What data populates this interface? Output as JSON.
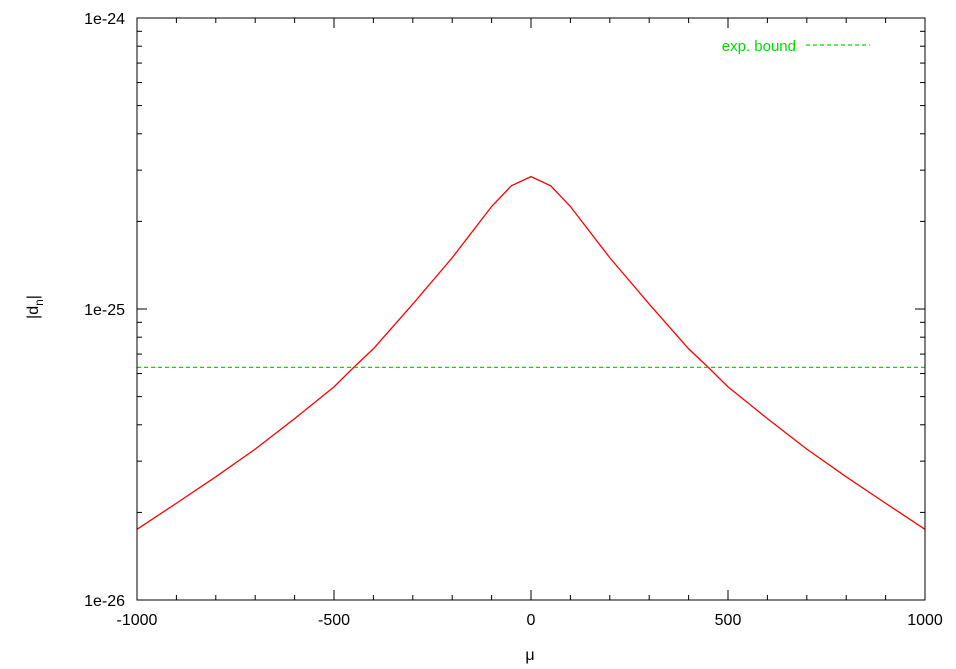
{
  "chart_data": {
    "type": "line",
    "title": "",
    "xlabel": "μ",
    "ylabel_main": "|d",
    "ylabel_sub": "n",
    "ylabel_end": "|",
    "xlim": [
      -1000,
      1000
    ],
    "ylim": [
      1e-26,
      1e-24
    ],
    "yscale": "log",
    "grid": false,
    "legend": "top-right",
    "x_ticks": [
      -1000,
      -500,
      0,
      500,
      1000
    ],
    "x_tick_labels": [
      "-1000",
      "-500",
      "0",
      "500",
      "1000"
    ],
    "y_ticks": [
      1e-26,
      1e-25,
      1e-24
    ],
    "y_tick_labels": [
      "1e-26",
      "1e-25",
      "1e-24"
    ],
    "series": [
      {
        "color": "#ff0000",
        "style": "solid",
        "x": [
          -1000,
          -900,
          -800,
          -700,
          -600,
          -500,
          -450,
          -400,
          -300,
          -200,
          -100,
          -50,
          0,
          50,
          100,
          200,
          300,
          400,
          450,
          500,
          600,
          700,
          800,
          900,
          1000
        ],
        "y": [
          1.75e-26,
          2.15e-26,
          2.65e-26,
          3.3e-26,
          4.2e-26,
          5.4e-26,
          6.3e-26,
          7.3e-26,
          1.04e-25,
          1.5e-25,
          2.25e-25,
          2.65e-25,
          2.85e-25,
          2.65e-25,
          2.25e-25,
          1.5e-25,
          1.04e-25,
          7.3e-26,
          6.3e-26,
          5.4e-26,
          4.2e-26,
          3.3e-26,
          2.65e-26,
          2.15e-26,
          1.75e-26
        ]
      },
      {
        "name": "exp. bound",
        "color": "#00dd00",
        "style": "dashed",
        "x": [
          -1000,
          1000
        ],
        "y": [
          6.3e-26,
          6.3e-26
        ]
      }
    ]
  }
}
